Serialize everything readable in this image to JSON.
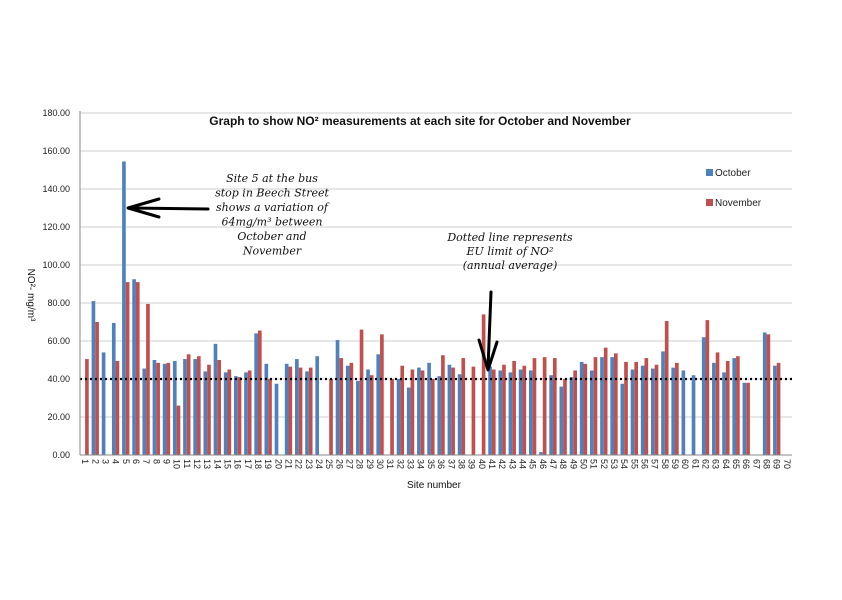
{
  "chart_data": {
    "type": "bar",
    "title": "Graph to show NO² measurements at each site for October and November",
    "xlabel": "Site number",
    "ylabel": "NO²- mg/m³",
    "ylim": [
      0,
      180
    ],
    "yticks": [
      "0.00",
      "20.00",
      "40.00",
      "60.00",
      "80.00",
      "100.00",
      "120.00",
      "140.00",
      "160.00",
      "180.00"
    ],
    "grid": true,
    "legend_position": "right",
    "categories": [
      "1",
      "2",
      "3",
      "4",
      "5",
      "6",
      "7",
      "8",
      "9",
      "10",
      "11",
      "12",
      "13",
      "14",
      "15",
      "16",
      "17",
      "18",
      "19",
      "20",
      "21",
      "22",
      "23",
      "24",
      "25",
      "26",
      "27",
      "28",
      "29",
      "30",
      "31",
      "32",
      "33",
      "34",
      "35",
      "36",
      "37",
      "38",
      "39",
      "40",
      "41",
      "42",
      "43",
      "44",
      "45",
      "46",
      "47",
      "48",
      "49",
      "50",
      "51",
      "52",
      "53",
      "54",
      "55",
      "56",
      "57",
      "58",
      "59",
      "60",
      "61",
      "62",
      "63",
      "64",
      "65",
      "66",
      "67",
      "68",
      "69",
      "70"
    ],
    "series": [
      {
        "name": "October",
        "color": "#4f81bd",
        "values": [
          null,
          81.0,
          54.0,
          69.5,
          154.5,
          92.5,
          45.5,
          50.0,
          48.0,
          49.5,
          50.5,
          50.5,
          44.0,
          58.5,
          43.5,
          41.5,
          43.5,
          64.0,
          48.0,
          37.5,
          48.0,
          50.5,
          44.0,
          52.0,
          null,
          60.5,
          47.0,
          39.0,
          45.0,
          53.0,
          null,
          40.0,
          35.5,
          46.0,
          48.5,
          41.5,
          47.5,
          42.5,
          null,
          null,
          46.5,
          44.5,
          43.5,
          45.0,
          44.5,
          1.5,
          42.0,
          36.0,
          41.0,
          49.0,
          44.5,
          51.5,
          51.5,
          37.5,
          45.0,
          47.0,
          45.5,
          54.5,
          46.0,
          44.5,
          42.0,
          62.0,
          48.5,
          43.5,
          51.0,
          38.0,
          null,
          64.5,
          47.0,
          null
        ]
      },
      {
        "name": "November",
        "color": "#c0504d",
        "values": [
          50.5,
          70.0,
          null,
          49.5,
          91.0,
          91.0,
          79.5,
          48.5,
          48.5,
          26.0,
          53.0,
          52.0,
          47.5,
          50.0,
          45.0,
          41.0,
          44.5,
          65.5,
          40.0,
          null,
          46.5,
          46.0,
          46.0,
          null,
          40.0,
          51.0,
          48.5,
          66.0,
          42.0,
          63.5,
          40.0,
          47.0,
          45.0,
          44.5,
          40.0,
          52.5,
          46.0,
          51.0,
          46.5,
          74.0,
          45.0,
          47.5,
          49.5,
          47.0,
          51.0,
          51.5,
          51.0,
          40.0,
          44.5,
          48.0,
          51.5,
          56.5,
          53.5,
          49.0,
          49.0,
          51.0,
          47.5,
          70.5,
          48.5,
          null,
          null,
          71.0,
          54.0,
          49.5,
          52.0,
          38.0,
          null,
          63.5,
          48.5,
          null
        ]
      }
    ],
    "reference_line": {
      "value": 40,
      "style": "dotted"
    },
    "annotations": [
      {
        "id": "site5",
        "lines": [
          "Site 5 at the bus",
          "stop in Beech Street",
          "shows a variation of",
          "64mg/m³ between",
          "October and",
          "November"
        ]
      },
      {
        "id": "eu-limit",
        "lines": [
          "Dotted line represents",
          "EU limit of NO²",
          "(annual average)"
        ]
      }
    ]
  }
}
